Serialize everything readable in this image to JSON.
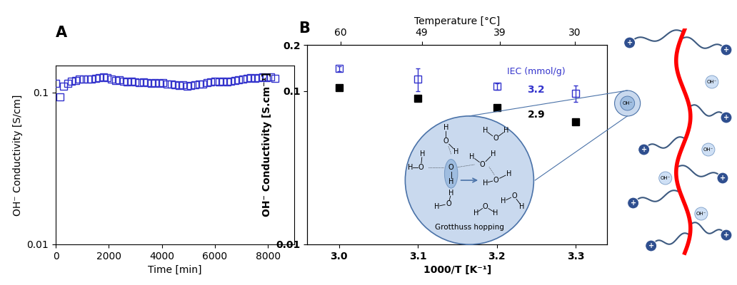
{
  "chart_data": [
    {
      "type": "scatter",
      "title": "A",
      "x_label": "Time [min]",
      "y_label": "OH⁻ Conductivity [S/cm]",
      "log": "y",
      "xlim": [
        0,
        9000
      ],
      "xticks": [
        0,
        2000,
        4000,
        6000,
        8000
      ],
      "ylim": [
        0.01,
        0.15
      ],
      "yticks": [
        0.01,
        0.1
      ],
      "series": [
        {
          "color": "#3333cc",
          "marker": "open_square",
          "x": [
            0,
            150,
            300,
            450,
            600,
            750,
            900,
            1050,
            1200,
            1350,
            1500,
            1650,
            1800,
            1950,
            2100,
            2250,
            2400,
            2550,
            2700,
            2850,
            3000,
            3150,
            3300,
            3450,
            3600,
            3750,
            3900,
            4050,
            4200,
            4350,
            4500,
            4650,
            4800,
            4950,
            5100,
            5250,
            5400,
            5550,
            5700,
            5850,
            6000,
            6150,
            6300,
            6450,
            6600,
            6750,
            6900,
            7050,
            7200,
            7350,
            7500,
            7650,
            7800,
            7950,
            8100,
            8250
          ],
          "values": [
            0.115,
            0.093,
            0.11,
            0.115,
            0.118,
            0.12,
            0.122,
            0.123,
            0.122,
            0.123,
            0.124,
            0.125,
            0.126,
            0.125,
            0.123,
            0.12,
            0.121,
            0.119,
            0.117,
            0.118,
            0.117,
            0.116,
            0.117,
            0.116,
            0.115,
            0.116,
            0.115,
            0.116,
            0.114,
            0.113,
            0.112,
            0.111,
            0.112,
            0.11,
            0.111,
            0.112,
            0.113,
            0.114,
            0.116,
            0.117,
            0.118,
            0.117,
            0.118,
            0.117,
            0.119,
            0.12,
            0.121,
            0.123,
            0.124,
            0.125,
            0.124,
            0.125,
            0.126,
            0.125,
            0.127,
            0.124
          ]
        }
      ]
    },
    {
      "type": "scatter",
      "title": "B",
      "x_label": "1000/T [K⁻¹]",
      "x2_label": "Temperature [°C]",
      "y_label": "OH⁻ Conductivity [S.cm⁻¹]",
      "log": "y",
      "xlim": [
        2.96,
        3.34
      ],
      "xticks": [
        3.0,
        3.1,
        3.2,
        3.3
      ],
      "x2ticks": [
        {
          "value": 3.002,
          "label": "60"
        },
        {
          "value": 3.105,
          "label": "49"
        },
        {
          "value": 3.204,
          "label": "39"
        },
        {
          "value": 3.299,
          "label": "30"
        }
      ],
      "ylim": [
        0.01,
        0.2
      ],
      "yticks": [
        0.01,
        0.1,
        0.2
      ],
      "annotations": [
        "IEC (mmol/g)"
      ],
      "series": [
        {
          "name": "3.2",
          "color": "#3333cc",
          "marker": "open_square",
          "x": [
            3.0,
            3.1,
            3.2,
            3.3
          ],
          "values": [
            0.14,
            0.12,
            0.107,
            0.097
          ],
          "errors": [
            0.005,
            0.02,
            0.005,
            0.012
          ]
        },
        {
          "name": "2.9",
          "color": "#000000",
          "marker": "square",
          "x": [
            3.0,
            3.1,
            3.2,
            3.3
          ],
          "values": [
            0.105,
            0.09,
            0.078,
            0.063
          ]
        }
      ]
    }
  ],
  "diagram": {
    "inset_caption": "Grotthuss hopping",
    "atoms": {
      "oxygen": "O",
      "hydrogen": "H"
    },
    "cation": "+",
    "anion": "OH⁻"
  }
}
